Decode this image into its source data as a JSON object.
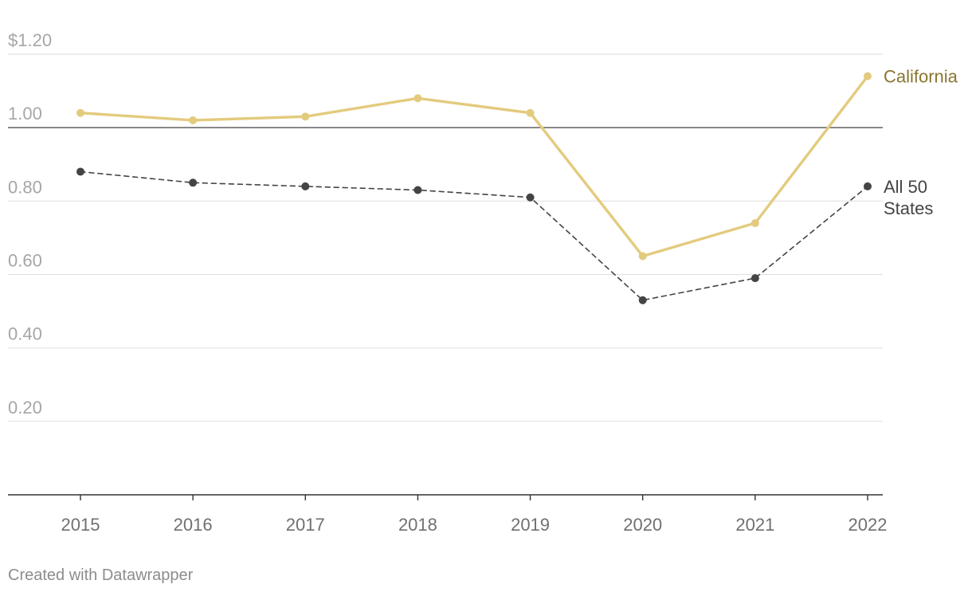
{
  "chart_data": {
    "type": "line",
    "x": [
      "2015",
      "2016",
      "2017",
      "2018",
      "2019",
      "2020",
      "2021",
      "2022"
    ],
    "series": [
      {
        "name": "California",
        "values": [
          1.04,
          1.02,
          1.03,
          1.08,
          1.04,
          0.65,
          0.74,
          1.14
        ],
        "color": "#e3cb7e",
        "style": "solid"
      },
      {
        "name": "All 50 States",
        "label_lines": [
          "All 50",
          "States"
        ],
        "values": [
          0.88,
          0.85,
          0.84,
          0.83,
          0.81,
          0.53,
          0.59,
          0.84
        ],
        "color": "#444444",
        "style": "dashed"
      }
    ],
    "y_ticks": [
      {
        "value": 1.2,
        "label": "$1.20"
      },
      {
        "value": 1.0,
        "label": "1.00"
      },
      {
        "value": 0.8,
        "label": "0.80"
      },
      {
        "value": 0.6,
        "label": "0.60"
      },
      {
        "value": 0.4,
        "label": "0.40"
      },
      {
        "value": 0.2,
        "label": "0.20"
      }
    ],
    "ylim": [
      0,
      1.2
    ],
    "reference_line": 1.0,
    "grid": true,
    "legend": "direct labels at line ends",
    "label_colors": {
      "California": "#8a7530",
      "All 50 States": "#444444"
    }
  },
  "footer": {
    "credit": "Created with Datawrapper"
  }
}
